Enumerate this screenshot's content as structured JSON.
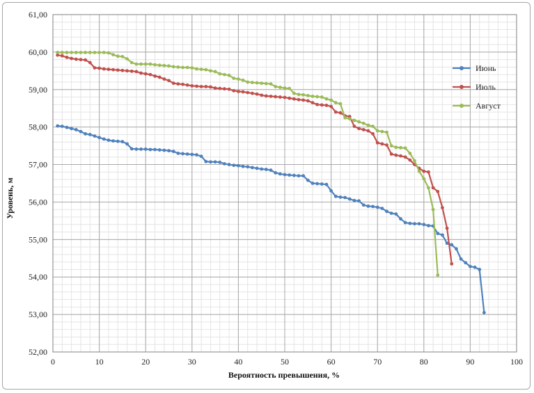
{
  "chart_data": {
    "type": "line",
    "title": "",
    "xlabel": "Вероятность превышения, %",
    "ylabel": "Уровень, м",
    "xlim": [
      0,
      100
    ],
    "ylim": [
      52,
      61
    ],
    "x_ticks": [
      "0",
      "10",
      "20",
      "30",
      "40",
      "50",
      "60",
      "70",
      "80",
      "90",
      "100"
    ],
    "y_ticks": [
      "52,00",
      "53,00",
      "54,00",
      "55,00",
      "56,00",
      "57,00",
      "58,00",
      "59,00",
      "60,00",
      "61,00"
    ],
    "grid": true,
    "legend_position": "right",
    "series": [
      {
        "name": "Июнь",
        "color": "#4f81bd",
        "points": [
          [
            1,
            58.03
          ],
          [
            2,
            58.02
          ],
          [
            3,
            57.99
          ],
          [
            4,
            57.96
          ],
          [
            5,
            57.93
          ],
          [
            6,
            57.88
          ],
          [
            7,
            57.82
          ],
          [
            8,
            57.8
          ],
          [
            9,
            57.76
          ],
          [
            10,
            57.72
          ],
          [
            11,
            57.68
          ],
          [
            12,
            57.65
          ],
          [
            13,
            57.63
          ],
          [
            14,
            57.62
          ],
          [
            15,
            57.61
          ],
          [
            16,
            57.55
          ],
          [
            17,
            57.42
          ],
          [
            18,
            57.41
          ],
          [
            19,
            57.41
          ],
          [
            20,
            57.41
          ],
          [
            21,
            57.4
          ],
          [
            22,
            57.4
          ],
          [
            23,
            57.39
          ],
          [
            24,
            57.38
          ],
          [
            25,
            57.37
          ],
          [
            26,
            57.35
          ],
          [
            27,
            57.3
          ],
          [
            28,
            57.29
          ],
          [
            29,
            57.28
          ],
          [
            30,
            57.27
          ],
          [
            31,
            57.26
          ],
          [
            32,
            57.22
          ],
          [
            33,
            57.08
          ],
          [
            34,
            57.07
          ],
          [
            35,
            57.07
          ],
          [
            36,
            57.06
          ],
          [
            37,
            57.02
          ],
          [
            38,
            57
          ],
          [
            39,
            56.98
          ],
          [
            40,
            56.97
          ],
          [
            41,
            56.95
          ],
          [
            42,
            56.94
          ],
          [
            43,
            56.92
          ],
          [
            44,
            56.9
          ],
          [
            45,
            56.88
          ],
          [
            46,
            56.87
          ],
          [
            47,
            56.85
          ],
          [
            48,
            56.78
          ],
          [
            49,
            56.75
          ],
          [
            50,
            56.73
          ],
          [
            51,
            56.72
          ],
          [
            52,
            56.71
          ],
          [
            53,
            56.7
          ],
          [
            54,
            56.7
          ],
          [
            55,
            56.58
          ],
          [
            56,
            56.5
          ],
          [
            57,
            56.49
          ],
          [
            58,
            56.48
          ],
          [
            59,
            56.47
          ],
          [
            60,
            56.3
          ],
          [
            61,
            56.15
          ],
          [
            62,
            56.13
          ],
          [
            63,
            56.12
          ],
          [
            64,
            56.08
          ],
          [
            65,
            56.04
          ],
          [
            66,
            56.03
          ],
          [
            67,
            55.92
          ],
          [
            68,
            55.89
          ],
          [
            69,
            55.88
          ],
          [
            70,
            55.86
          ],
          [
            71,
            55.83
          ],
          [
            72,
            55.75
          ],
          [
            73,
            55.7
          ],
          [
            74,
            55.68
          ],
          [
            75,
            55.55
          ],
          [
            76,
            55.45
          ],
          [
            77,
            55.43
          ],
          [
            78,
            55.42
          ],
          [
            79,
            55.42
          ],
          [
            80,
            55.4
          ],
          [
            81,
            55.37
          ],
          [
            82,
            55.36
          ],
          [
            83,
            55.16
          ],
          [
            84,
            55.12
          ],
          [
            85,
            54.9
          ],
          [
            86,
            54.86
          ],
          [
            87,
            54.75
          ],
          [
            88,
            54.48
          ],
          [
            89,
            54.38
          ],
          [
            90,
            54.28
          ],
          [
            91,
            54.26
          ],
          [
            92,
            54.2
          ],
          [
            93,
            53.05
          ]
        ]
      },
      {
        "name": "Июль",
        "color": "#c0504d",
        "points": [
          [
            1,
            59.92
          ],
          [
            2,
            59.9
          ],
          [
            3,
            59.86
          ],
          [
            4,
            59.83
          ],
          [
            5,
            59.81
          ],
          [
            6,
            59.8
          ],
          [
            7,
            59.79
          ],
          [
            8,
            59.72
          ],
          [
            9,
            59.58
          ],
          [
            10,
            59.57
          ],
          [
            11,
            59.55
          ],
          [
            12,
            59.54
          ],
          [
            13,
            59.53
          ],
          [
            14,
            59.52
          ],
          [
            15,
            59.51
          ],
          [
            16,
            59.5
          ],
          [
            17,
            59.49
          ],
          [
            18,
            59.48
          ],
          [
            19,
            59.44
          ],
          [
            20,
            59.42
          ],
          [
            21,
            59.4
          ],
          [
            22,
            59.36
          ],
          [
            23,
            59.33
          ],
          [
            24,
            59.28
          ],
          [
            25,
            59.24
          ],
          [
            26,
            59.17
          ],
          [
            27,
            59.15
          ],
          [
            28,
            59.14
          ],
          [
            29,
            59.12
          ],
          [
            30,
            59.1
          ],
          [
            31,
            59.09
          ],
          [
            32,
            59.08
          ],
          [
            33,
            59.08
          ],
          [
            34,
            59.07
          ],
          [
            35,
            59.04
          ],
          [
            36,
            59.03
          ],
          [
            37,
            59.02
          ],
          [
            38,
            59.01
          ],
          [
            39,
            58.97
          ],
          [
            40,
            58.95
          ],
          [
            41,
            58.94
          ],
          [
            42,
            58.92
          ],
          [
            43,
            58.9
          ],
          [
            44,
            58.88
          ],
          [
            45,
            58.85
          ],
          [
            46,
            58.83
          ],
          [
            47,
            58.82
          ],
          [
            48,
            58.81
          ],
          [
            49,
            58.8
          ],
          [
            50,
            58.79
          ],
          [
            51,
            58.77
          ],
          [
            52,
            58.75
          ],
          [
            53,
            58.73
          ],
          [
            54,
            58.72
          ],
          [
            55,
            58.7
          ],
          [
            56,
            58.65
          ],
          [
            57,
            58.6
          ],
          [
            58,
            58.59
          ],
          [
            59,
            58.58
          ],
          [
            60,
            58.55
          ],
          [
            61,
            58.4
          ],
          [
            62,
            58.38
          ],
          [
            63,
            58.3
          ],
          [
            64,
            58.28
          ],
          [
            65,
            58.02
          ],
          [
            66,
            57.96
          ],
          [
            67,
            57.93
          ],
          [
            68,
            57.9
          ],
          [
            69,
            57.82
          ],
          [
            70,
            57.58
          ],
          [
            71,
            57.55
          ],
          [
            72,
            57.52
          ],
          [
            73,
            57.28
          ],
          [
            74,
            57.25
          ],
          [
            75,
            57.23
          ],
          [
            76,
            57.2
          ],
          [
            77,
            57.12
          ],
          [
            78,
            57
          ],
          [
            79,
            56.9
          ],
          [
            80,
            56.82
          ],
          [
            81,
            56.8
          ],
          [
            82,
            56.38
          ],
          [
            83,
            56.28
          ],
          [
            84,
            55.85
          ],
          [
            85,
            55.3
          ],
          [
            86,
            54.35
          ]
        ]
      },
      {
        "name": "Август",
        "color": "#9bbb59",
        "points": [
          [
            1,
            59.99
          ],
          [
            2,
            59.99
          ],
          [
            3,
            59.99
          ],
          [
            4,
            59.99
          ],
          [
            5,
            59.99
          ],
          [
            6,
            59.99
          ],
          [
            7,
            59.99
          ],
          [
            8,
            59.99
          ],
          [
            9,
            59.99
          ],
          [
            10,
            59.99
          ],
          [
            11,
            59.99
          ],
          [
            12,
            59.98
          ],
          [
            13,
            59.93
          ],
          [
            14,
            59.89
          ],
          [
            15,
            59.88
          ],
          [
            16,
            59.82
          ],
          [
            17,
            59.72
          ],
          [
            18,
            59.68
          ],
          [
            19,
            59.68
          ],
          [
            20,
            59.68
          ],
          [
            21,
            59.68
          ],
          [
            22,
            59.66
          ],
          [
            23,
            59.65
          ],
          [
            24,
            59.64
          ],
          [
            25,
            59.63
          ],
          [
            26,
            59.61
          ],
          [
            27,
            59.6
          ],
          [
            28,
            59.59
          ],
          [
            29,
            59.59
          ],
          [
            30,
            59.58
          ],
          [
            31,
            59.55
          ],
          [
            32,
            59.54
          ],
          [
            33,
            59.53
          ],
          [
            34,
            59.5
          ],
          [
            35,
            59.48
          ],
          [
            36,
            59.42
          ],
          [
            37,
            59.4
          ],
          [
            38,
            59.38
          ],
          [
            39,
            59.3
          ],
          [
            40,
            59.28
          ],
          [
            41,
            59.25
          ],
          [
            42,
            59.2
          ],
          [
            43,
            59.19
          ],
          [
            44,
            59.18
          ],
          [
            45,
            59.17
          ],
          [
            46,
            59.16
          ],
          [
            47,
            59.15
          ],
          [
            48,
            59.08
          ],
          [
            49,
            59.06
          ],
          [
            50,
            59.04
          ],
          [
            51,
            59.03
          ],
          [
            52,
            58.9
          ],
          [
            53,
            58.87
          ],
          [
            54,
            58.86
          ],
          [
            55,
            58.84
          ],
          [
            56,
            58.82
          ],
          [
            57,
            58.81
          ],
          [
            58,
            58.8
          ],
          [
            59,
            58.75
          ],
          [
            60,
            58.72
          ],
          [
            61,
            58.65
          ],
          [
            62,
            58.62
          ],
          [
            63,
            58.25
          ],
          [
            64,
            58.22
          ],
          [
            65,
            58.18
          ],
          [
            66,
            58.14
          ],
          [
            67,
            58.1
          ],
          [
            68,
            58.05
          ],
          [
            69,
            58.02
          ],
          [
            70,
            57.9
          ],
          [
            71,
            57.88
          ],
          [
            72,
            57.86
          ],
          [
            73,
            57.5
          ],
          [
            74,
            57.46
          ],
          [
            75,
            57.45
          ],
          [
            76,
            57.44
          ],
          [
            77,
            57.3
          ],
          [
            78,
            57.1
          ],
          [
            79,
            56.82
          ],
          [
            80,
            56.62
          ],
          [
            81,
            56.38
          ],
          [
            82,
            55.8
          ],
          [
            83,
            54.05
          ]
        ]
      }
    ]
  }
}
